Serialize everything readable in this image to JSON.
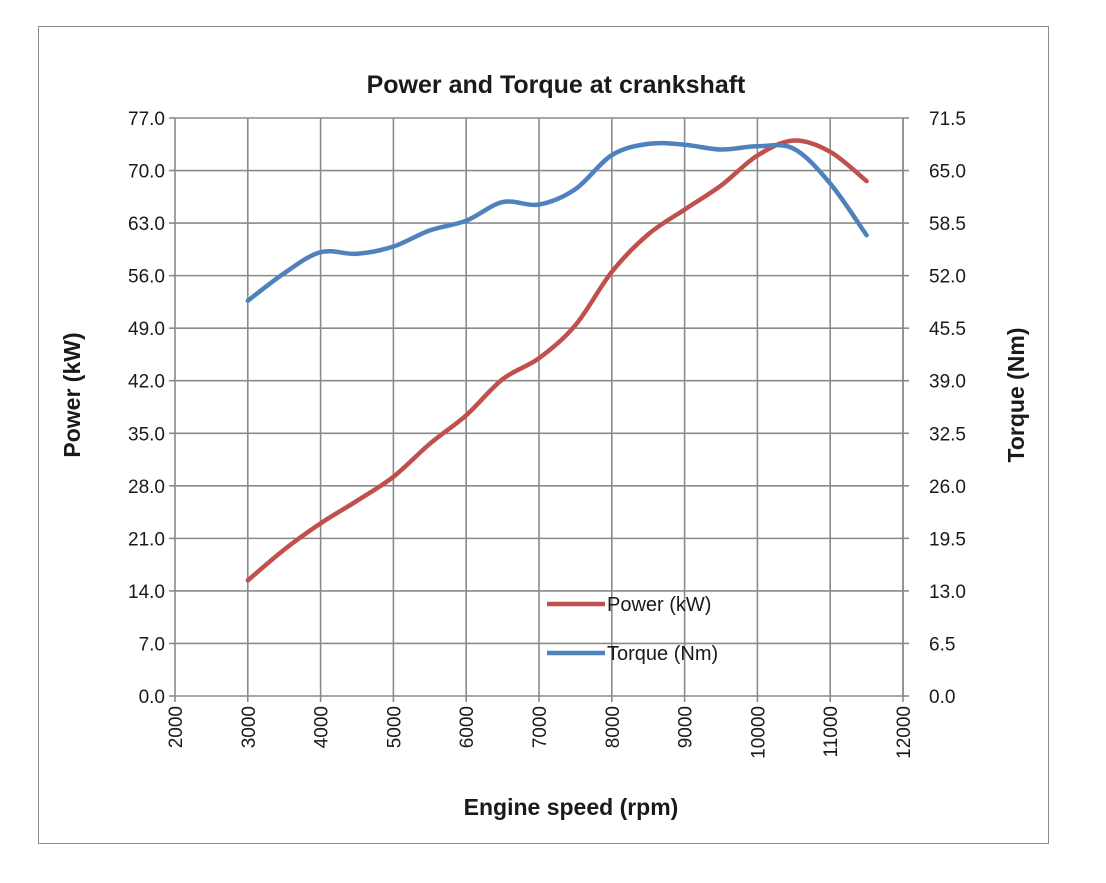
{
  "chart_data": {
    "type": "line",
    "title": "Power and Torque at crankshaft",
    "xlabel": "Engine speed (rpm)",
    "ylabel": "Power (kW)",
    "y2label": "Torque (Nm)",
    "xlim": [
      2000,
      12000
    ],
    "ylim": [
      0,
      77
    ],
    "y2lim": [
      0,
      71.5
    ],
    "x_ticks": [
      "2000",
      "3000",
      "4000",
      "5000",
      "6000",
      "7000",
      "8000",
      "9000",
      "10000",
      "11000",
      "12000"
    ],
    "y_ticks": [
      "0.0",
      "7.0",
      "14.0",
      "21.0",
      "28.0",
      "35.0",
      "42.0",
      "49.0",
      "56.0",
      "63.0",
      "70.0",
      "77.0"
    ],
    "y2_ticks": [
      "0.0",
      "6.5",
      "13.0",
      "19.5",
      "26.0",
      "32.5",
      "39.0",
      "45.5",
      "52.0",
      "58.5",
      "65.0",
      "71.5"
    ],
    "grid": true,
    "legend_position": "bottom-center",
    "series": [
      {
        "name": "Power (kW)",
        "axis": "left",
        "color": "#c0504d",
        "x": [
          3000,
          3500,
          4000,
          4500,
          5000,
          5500,
          6000,
          6500,
          7000,
          7500,
          8000,
          8500,
          9000,
          9500,
          10000,
          10500,
          11000,
          11500
        ],
        "y": [
          15.4,
          19.5,
          23.0,
          26.0,
          29.2,
          33.6,
          37.4,
          42.2,
          45.0,
          49.4,
          56.5,
          61.5,
          64.8,
          68.0,
          72.0,
          74.0,
          72.5,
          68.6
        ]
      },
      {
        "name": "Torque (Nm)",
        "axis": "right",
        "color": "#4f81bd",
        "x": [
          3000,
          3500,
          4000,
          4500,
          5000,
          5500,
          6000,
          6500,
          7000,
          7500,
          8000,
          8500,
          9000,
          9500,
          10000,
          10500,
          11000,
          11500
        ],
        "y": [
          48.9,
          52.3,
          54.9,
          54.7,
          55.6,
          57.6,
          58.8,
          61.1,
          60.8,
          62.7,
          66.9,
          68.3,
          68.2,
          67.6,
          68.0,
          67.7,
          63.4,
          57.0
        ]
      }
    ]
  }
}
